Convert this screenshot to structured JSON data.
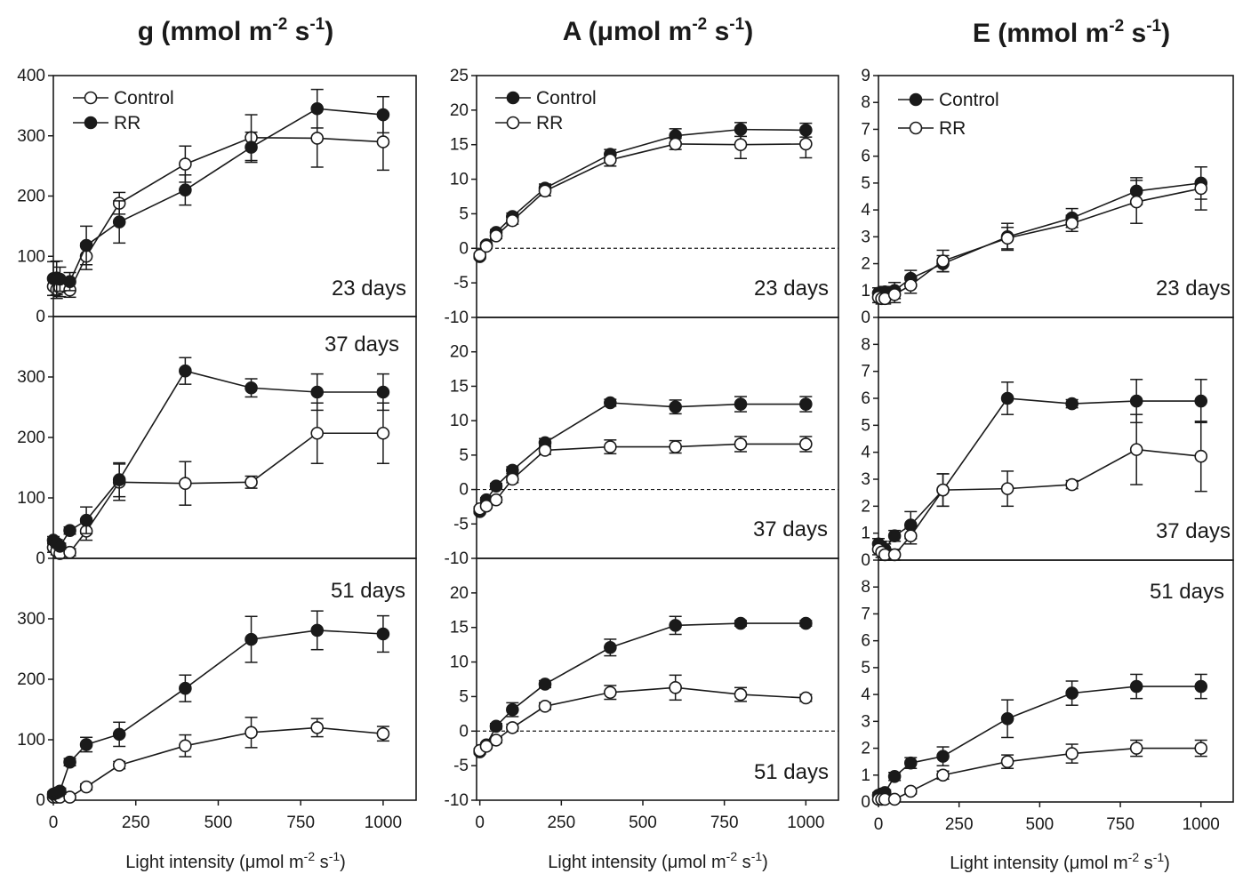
{
  "columns": [
    {
      "title": "g (mmol m-2 s-1)",
      "title_main": "g (mmol m",
      "title_sup1": "-2",
      "title_mid": " s",
      "title_sup2": "-1",
      "title_end": ")"
    },
    {
      "title": "A (μmol m-2 s-1)",
      "title_main": "A  (μmol m",
      "title_sup1": "-2",
      "title_mid": " s",
      "title_sup2": "-1",
      "title_end": ")"
    },
    {
      "title": "E (mmol m-2 s-1)",
      "title_main": "E (mmol m",
      "title_sup1": "-2",
      "title_mid": " s",
      "title_sup2": "-1",
      "title_end": ")"
    }
  ],
  "xlabel": {
    "main": "Light intensity (μmol m",
    "sup1": "-2",
    "mid": " s",
    "sup2": "-1",
    "end": ")"
  },
  "chart_data": [
    {
      "type": "line",
      "column": 0,
      "row": 0,
      "panel_label": "23 days",
      "xlim": [
        0,
        1100
      ],
      "ylim": [
        0,
        400
      ],
      "xticks": [
        0,
        250,
        500,
        750,
        1000
      ],
      "yticks": [
        0,
        100,
        200,
        300,
        400
      ],
      "legend": {
        "placement": "top-left",
        "entries": [
          "Control",
          "RR"
        ]
      },
      "series": [
        {
          "name": "Control",
          "marker": "open",
          "x": [
            0,
            10,
            20,
            50,
            100,
            200,
            400,
            600,
            800,
            1000
          ],
          "y": [
            50,
            45,
            48,
            44,
            100,
            188,
            253,
            297,
            296,
            290
          ],
          "err": [
            15,
            15,
            15,
            12,
            22,
            18,
            30,
            38,
            48,
            47
          ]
        },
        {
          "name": "RR",
          "marker": "filled",
          "x": [
            0,
            10,
            20,
            50,
            100,
            200,
            400,
            600,
            800,
            1000
          ],
          "y": [
            63,
            64,
            62,
            58,
            118,
            157,
            210,
            281,
            345,
            335
          ],
          "err": [
            28,
            28,
            20,
            15,
            32,
            35,
            25,
            25,
            32,
            30
          ]
        }
      ]
    },
    {
      "type": "line",
      "column": 0,
      "row": 1,
      "panel_label": "37 days",
      "xlim": [
        0,
        1100
      ],
      "ylim": [
        0,
        400
      ],
      "xticks": [
        0,
        250,
        500,
        750,
        1000
      ],
      "yticks": [
        0,
        100,
        200,
        300
      ],
      "series": [
        {
          "name": "Control",
          "marker": "open",
          "x": [
            0,
            10,
            20,
            50,
            100,
            200,
            400,
            600,
            800,
            1000
          ],
          "y": [
            18,
            12,
            8,
            10,
            45,
            126,
            124,
            126,
            207,
            207
          ],
          "err": [
            8,
            6,
            5,
            6,
            15,
            30,
            36,
            10,
            50,
            50
          ]
        },
        {
          "name": "RR",
          "marker": "filled",
          "x": [
            0,
            10,
            20,
            50,
            100,
            200,
            400,
            600,
            800,
            1000
          ],
          "y": [
            30,
            25,
            20,
            46,
            63,
            130,
            310,
            282,
            275,
            275
          ],
          "err": [
            6,
            6,
            5,
            6,
            22,
            28,
            22,
            15,
            30,
            30
          ]
        }
      ]
    },
    {
      "type": "line",
      "column": 0,
      "row": 2,
      "panel_label": "51 days",
      "xlim": [
        0,
        1100
      ],
      "ylim": [
        0,
        400
      ],
      "xticks": [
        0,
        250,
        500,
        750,
        1000
      ],
      "yticks": [
        0,
        100,
        200,
        300
      ],
      "series": [
        {
          "name": "Control",
          "marker": "open",
          "x": [
            0,
            10,
            20,
            50,
            100,
            200,
            400,
            600,
            800,
            1000
          ],
          "y": [
            5,
            5,
            5,
            5,
            22,
            58,
            90,
            112,
            120,
            110
          ],
          "err": [
            3,
            3,
            3,
            3,
            5,
            6,
            18,
            25,
            15,
            12
          ]
        },
        {
          "name": "RR",
          "marker": "filled",
          "x": [
            0,
            10,
            20,
            50,
            100,
            200,
            400,
            600,
            800,
            1000
          ],
          "y": [
            10,
            12,
            15,
            63,
            92,
            109,
            185,
            266,
            281,
            275
          ],
          "err": [
            4,
            4,
            5,
            6,
            12,
            20,
            22,
            38,
            32,
            30
          ]
        }
      ]
    },
    {
      "type": "line",
      "column": 1,
      "row": 0,
      "panel_label": "23 days",
      "xlim": [
        -10,
        1100
      ],
      "ylim": [
        -10,
        25
      ],
      "zero_line": true,
      "xticks": [
        0,
        250,
        500,
        750,
        1000
      ],
      "yticks": [
        -10,
        -5,
        0,
        5,
        10,
        15,
        20,
        25
      ],
      "legend": {
        "placement": "top-left",
        "entries": [
          "Control",
          "RR"
        ]
      },
      "series": [
        {
          "name": "Control",
          "marker": "filled",
          "x": [
            0,
            20,
            50,
            100,
            200,
            400,
            600,
            800,
            1000
          ],
          "y": [
            -1.2,
            0.5,
            2.3,
            4.6,
            8.7,
            13.6,
            16.3,
            17.2,
            17.1
          ],
          "err": [
            0.3,
            0.3,
            0.4,
            0.5,
            0.6,
            0.7,
            1.0,
            1.0,
            1.0
          ]
        },
        {
          "name": "RR",
          "marker": "open",
          "x": [
            0,
            20,
            50,
            100,
            200,
            400,
            600,
            800,
            1000
          ],
          "y": [
            -1.0,
            0.3,
            1.8,
            4.0,
            8.3,
            12.8,
            15.1,
            15.0,
            15.1
          ],
          "err": [
            0.3,
            0.3,
            0.4,
            0.5,
            0.7,
            0.9,
            0.8,
            2.0,
            2.0
          ]
        }
      ]
    },
    {
      "type": "line",
      "column": 1,
      "row": 1,
      "panel_label": "37 days",
      "xlim": [
        -10,
        1100
      ],
      "ylim": [
        -10,
        25
      ],
      "zero_line": true,
      "xticks": [
        0,
        250,
        500,
        750,
        1000
      ],
      "yticks": [
        -10,
        -5,
        0,
        5,
        10,
        15,
        20
      ],
      "series": [
        {
          "name": "Control",
          "marker": "filled",
          "x": [
            0,
            20,
            50,
            100,
            200,
            400,
            600,
            800,
            1000
          ],
          "y": [
            -3.2,
            -1.5,
            0.5,
            2.8,
            6.8,
            12.6,
            12.0,
            12.4,
            12.4
          ],
          "err": [
            0.3,
            0.3,
            0.4,
            0.5,
            0.6,
            0.5,
            1.0,
            1.1,
            1.1
          ]
        },
        {
          "name": "RR",
          "marker": "open",
          "x": [
            0,
            20,
            50,
            100,
            200,
            400,
            600,
            800,
            1000
          ],
          "y": [
            -2.8,
            -2.4,
            -1.5,
            1.5,
            5.7,
            6.2,
            6.2,
            6.6,
            6.6
          ],
          "err": [
            0.3,
            0.3,
            0.4,
            0.5,
            0.6,
            1.0,
            0.9,
            1.1,
            1.1
          ]
        }
      ]
    },
    {
      "type": "line",
      "column": 1,
      "row": 2,
      "panel_label": "51 days",
      "xlim": [
        -10,
        1100
      ],
      "ylim": [
        -10,
        25
      ],
      "zero_line": true,
      "xticks": [
        0,
        250,
        500,
        750,
        1000
      ],
      "yticks": [
        -10,
        -5,
        0,
        5,
        10,
        15,
        20
      ],
      "series": [
        {
          "name": "Control",
          "marker": "filled",
          "x": [
            0,
            20,
            50,
            100,
            200,
            400,
            600,
            800,
            1000
          ],
          "y": [
            -3.0,
            -2.0,
            0.7,
            3.1,
            6.8,
            12.1,
            15.3,
            15.6,
            15.6
          ],
          "err": [
            0.3,
            0.3,
            0.4,
            1.0,
            0.5,
            1.2,
            1.3,
            0.4,
            0.4
          ]
        },
        {
          "name": "RR",
          "marker": "open",
          "x": [
            0,
            20,
            50,
            100,
            200,
            400,
            600,
            800,
            1000
          ],
          "y": [
            -2.8,
            -2.2,
            -1.3,
            0.5,
            3.6,
            5.6,
            6.3,
            5.3,
            4.8
          ],
          "err": [
            0.3,
            0.3,
            0.4,
            0.5,
            0.5,
            1.0,
            1.8,
            1.0,
            0.5
          ]
        }
      ]
    },
    {
      "type": "line",
      "column": 2,
      "row": 0,
      "panel_label": "23 days",
      "xlim": [
        0,
        1100
      ],
      "ylim": [
        0,
        9
      ],
      "xticks": [
        0,
        250,
        500,
        750,
        1000
      ],
      "yticks": [
        0,
        1,
        2,
        3,
        4,
        5,
        6,
        7,
        8,
        9
      ],
      "legend": {
        "placement": "top-left",
        "entries": [
          "Control",
          "RR"
        ]
      },
      "series": [
        {
          "name": "Control",
          "marker": "filled",
          "x": [
            0,
            10,
            20,
            50,
            100,
            200,
            400,
            600,
            800,
            1000
          ],
          "y": [
            0.9,
            0.9,
            0.95,
            1.0,
            1.45,
            2.0,
            3.0,
            3.7,
            4.7,
            5.0
          ],
          "err": [
            0.2,
            0.2,
            0.2,
            0.3,
            0.3,
            0.3,
            0.5,
            0.35,
            0.5,
            0.6
          ]
        },
        {
          "name": "RR",
          "marker": "open",
          "x": [
            0,
            10,
            20,
            50,
            100,
            200,
            400,
            600,
            800,
            1000
          ],
          "y": [
            0.75,
            0.7,
            0.7,
            0.85,
            1.2,
            2.1,
            2.95,
            3.5,
            4.3,
            4.8
          ],
          "err": [
            0.2,
            0.2,
            0.2,
            0.3,
            0.3,
            0.4,
            0.4,
            0.3,
            0.8,
            0.8
          ]
        }
      ]
    },
    {
      "type": "line",
      "column": 2,
      "row": 1,
      "panel_label": "37 days",
      "xlim": [
        0,
        1100
      ],
      "ylim": [
        0,
        9
      ],
      "xticks": [
        0,
        250,
        500,
        750,
        1000
      ],
      "yticks": [
        0,
        1,
        2,
        3,
        4,
        5,
        6,
        7,
        8
      ],
      "series": [
        {
          "name": "Control",
          "marker": "filled",
          "x": [
            0,
            10,
            20,
            50,
            100,
            200,
            400,
            600,
            800,
            1000
          ],
          "y": [
            0.6,
            0.5,
            0.4,
            0.9,
            1.3,
            2.6,
            6.0,
            5.8,
            5.9,
            5.9
          ],
          "err": [
            0.2,
            0.2,
            0.2,
            0.2,
            0.5,
            0.6,
            0.6,
            0.15,
            0.8,
            0.8
          ]
        },
        {
          "name": "RR",
          "marker": "open",
          "x": [
            0,
            10,
            20,
            50,
            100,
            200,
            400,
            600,
            800,
            1000
          ],
          "y": [
            0.4,
            0.3,
            0.2,
            0.2,
            0.9,
            2.6,
            2.65,
            2.8,
            4.1,
            3.85
          ],
          "err": [
            0.2,
            0.2,
            0.2,
            0.2,
            0.3,
            0.6,
            0.65,
            0.15,
            1.3,
            1.3
          ]
        }
      ]
    },
    {
      "type": "line",
      "column": 2,
      "row": 2,
      "panel_label": "51 days",
      "xlim": [
        0,
        1100
      ],
      "ylim": [
        0,
        9
      ],
      "xticks": [
        0,
        250,
        500,
        750,
        1000
      ],
      "yticks": [
        0,
        1,
        2,
        3,
        4,
        5,
        6,
        7,
        8
      ],
      "series": [
        {
          "name": "Control",
          "marker": "filled",
          "x": [
            0,
            10,
            20,
            50,
            100,
            200,
            400,
            600,
            800,
            1000
          ],
          "y": [
            0.25,
            0.3,
            0.35,
            0.95,
            1.45,
            1.7,
            3.1,
            4.05,
            4.3,
            4.3
          ],
          "err": [
            0.1,
            0.1,
            0.1,
            0.15,
            0.2,
            0.35,
            0.7,
            0.45,
            0.45,
            0.45
          ]
        },
        {
          "name": "RR",
          "marker": "open",
          "x": [
            0,
            10,
            20,
            50,
            100,
            200,
            400,
            600,
            800,
            1000
          ],
          "y": [
            0.1,
            0.1,
            0.1,
            0.1,
            0.4,
            1.0,
            1.5,
            1.8,
            2.0,
            2.0
          ],
          "err": [
            0.05,
            0.05,
            0.05,
            0.05,
            0.1,
            0.15,
            0.25,
            0.35,
            0.3,
            0.3
          ]
        }
      ]
    }
  ]
}
